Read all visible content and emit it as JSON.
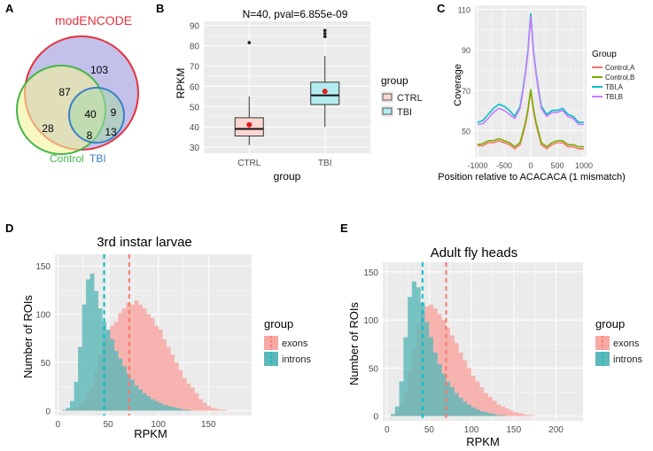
{
  "panel_labels": {
    "A": "A",
    "B": "B",
    "C": "C",
    "D": "D",
    "E": "E"
  },
  "colors": {
    "grid_bg": "#ebebeb",
    "grid_line": "#ffffff",
    "ctrl": "#f8766d",
    "tbi": "#00bfc4",
    "exons_fill": "#f8a9a4",
    "introns_fill": "#5cb8b8",
    "venn_modencode_stroke": "#e8303a",
    "venn_modencode_fill": "#b9b5e6",
    "venn_control_stroke": "#45b649",
    "venn_control_fill": "#f4f49a",
    "venn_tbi_stroke": "#3a80c9",
    "venn_tbi_fill": "#a8d8a8",
    "control_a": "#f8766d",
    "control_b": "#7cae00",
    "tbi_a": "#00bfc4",
    "tbi_b": "#c77cff"
  },
  "chart_data": [
    {
      "panel": "A",
      "type": "venn",
      "sets": [
        {
          "name": "modENCODE",
          "color": "#e8303a"
        },
        {
          "name": "Control",
          "color": "#45b649"
        },
        {
          "name": "TBI",
          "color": "#3a80c9"
        }
      ],
      "regions": [
        {
          "label": "103",
          "sets": [
            "modENCODE"
          ]
        },
        {
          "label": "87",
          "sets": [
            "modENCODE",
            "Control"
          ]
        },
        {
          "label": "40",
          "sets": [
            "modENCODE",
            "Control",
            "TBI"
          ]
        },
        {
          "label": "9",
          "sets": [
            "modENCODE",
            "TBI"
          ]
        },
        {
          "label": "28",
          "sets": [
            "Control"
          ]
        },
        {
          "label": "8",
          "sets": [
            "Control",
            "TBI"
          ]
        },
        {
          "label": "13",
          "sets": [
            "TBI"
          ]
        }
      ]
    },
    {
      "panel": "B",
      "type": "boxplot",
      "title": "N=40, pval=6.855e-09",
      "xlabel": "group",
      "ylabel": "RPKM",
      "ylim": [
        27,
        92
      ],
      "yticks": [
        30,
        40,
        50,
        60,
        70,
        80,
        90
      ],
      "categories": [
        "CTRL",
        "TBI"
      ],
      "legend_title": "group",
      "series": [
        {
          "name": "CTRL",
          "color": "#f8766d",
          "whisker_low": 31,
          "q1": 35.5,
          "median": 39,
          "q3": 44.5,
          "whisker_high": 55,
          "mean": 41,
          "outliers": [
            81.5
          ]
        },
        {
          "name": "TBI",
          "color": "#00bfc4",
          "whisker_low": 40,
          "q1": 51,
          "median": 55.5,
          "q3": 62,
          "whisker_high": 75,
          "mean": 57.5,
          "outliers": [
            84.5,
            86,
            87.5
          ]
        }
      ]
    },
    {
      "panel": "C",
      "type": "line",
      "xlabel": "Position relative to ACACACA (1 mismatch)",
      "ylabel": "Coverage",
      "xlim": [
        -1050,
        1050
      ],
      "ylim": [
        37,
        112
      ],
      "xticks": [
        -1000,
        -500,
        0,
        500,
        1000
      ],
      "xticklabels": [
        "-1000",
        "-500",
        "0",
        "500",
        "1000"
      ],
      "yticks": [
        50,
        70,
        90,
        110
      ],
      "legend_title": "Group",
      "series": [
        {
          "name": "Control,A",
          "color": "#f8766d",
          "x": [
            -1000,
            -900,
            -800,
            -700,
            -600,
            -500,
            -400,
            -300,
            -200,
            -150,
            -100,
            -50,
            0,
            50,
            100,
            150,
            200,
            300,
            400,
            500,
            600,
            700,
            800,
            900,
            1000
          ],
          "values": [
            42.5,
            42.5,
            44,
            44,
            45,
            44,
            43,
            41,
            43,
            48,
            53,
            60,
            70,
            60,
            53,
            48,
            43,
            41,
            43,
            44,
            44,
            42,
            42,
            41,
            41
          ]
        },
        {
          "name": "Control,B",
          "color": "#7cae00",
          "x": [
            -1000,
            -900,
            -800,
            -700,
            -600,
            -500,
            -400,
            -300,
            -200,
            -150,
            -100,
            -50,
            0,
            50,
            100,
            150,
            200,
            300,
            400,
            500,
            600,
            700,
            800,
            900,
            1000
          ],
          "values": [
            43,
            43.5,
            45,
            45,
            46,
            45,
            44,
            42,
            44,
            49,
            54,
            61,
            70.5,
            61,
            54,
            49,
            44,
            42,
            44,
            45,
            45,
            43,
            43,
            42,
            42
          ]
        },
        {
          "name": "TBI,A",
          "color": "#00bfc4",
          "x": [
            -1000,
            -900,
            -800,
            -700,
            -600,
            -500,
            -400,
            -300,
            -200,
            -150,
            -100,
            -50,
            0,
            50,
            100,
            150,
            200,
            300,
            400,
            500,
            600,
            700,
            800,
            900,
            1000
          ],
          "values": [
            54,
            55,
            58,
            61,
            63,
            62,
            60,
            57,
            62,
            70,
            79,
            90,
            108,
            90,
            79,
            70,
            62,
            58,
            60,
            60,
            61,
            58,
            57,
            54,
            54
          ]
        },
        {
          "name": "TBI,B",
          "color": "#c77cff",
          "x": [
            -1000,
            -900,
            -800,
            -700,
            -600,
            -500,
            -400,
            -300,
            -200,
            -150,
            -100,
            -50,
            0,
            50,
            100,
            150,
            200,
            300,
            400,
            500,
            600,
            700,
            800,
            900,
            1000
          ],
          "values": [
            53,
            53.5,
            56,
            59,
            61,
            60,
            58,
            56,
            61,
            69,
            78,
            89,
            106.5,
            89,
            78,
            69,
            61,
            57,
            59,
            59,
            60,
            57,
            56,
            53,
            53
          ]
        }
      ]
    },
    {
      "panel": "D",
      "type": "histogram",
      "title": "3rd instar larvae",
      "xlabel": "RPKM",
      "ylabel": "Number of ROIs",
      "xlim": [
        -3,
        193
      ],
      "ylim": [
        -5,
        162
      ],
      "xticks": [
        0,
        50,
        100,
        150
      ],
      "yticks": [
        0,
        50,
        100,
        150
      ],
      "legend_title": "group",
      "series": [
        {
          "name": "exons",
          "color": "#f8a9a4",
          "mean_line": 71,
          "bins_x": [
            2,
            6,
            10,
            14,
            18,
            22,
            26,
            30,
            34,
            38,
            42,
            46,
            50,
            54,
            58,
            62,
            66,
            70,
            74,
            78,
            82,
            86,
            90,
            94,
            98,
            102,
            106,
            110,
            114,
            118,
            122,
            126,
            130,
            134,
            138,
            142,
            146,
            150,
            154,
            158,
            162,
            166,
            170,
            174,
            178,
            182,
            186,
            190
          ],
          "values": [
            0,
            0,
            1,
            2,
            4,
            7,
            11,
            17,
            25,
            40,
            58,
            74,
            82,
            88,
            92,
            101,
            106,
            112,
            110,
            114,
            110,
            106,
            100,
            96,
            88,
            84,
            74,
            66,
            58,
            50,
            42,
            34,
            28,
            24,
            18,
            12,
            8,
            5,
            3,
            2,
            1,
            1,
            0,
            0,
            0,
            0,
            0,
            0
          ]
        },
        {
          "name": "introns",
          "color": "#5cb8b8",
          "mean_line": 46,
          "bins_x": [
            2,
            6,
            10,
            14,
            18,
            22,
            26,
            30,
            34,
            38,
            42,
            46,
            50,
            54,
            58,
            62,
            66,
            70,
            74,
            78,
            82,
            86,
            90,
            94,
            98,
            102,
            106,
            110,
            114,
            118,
            122,
            126,
            130,
            134,
            138,
            142,
            146,
            150,
            154,
            158,
            162,
            166,
            170,
            174,
            178,
            182,
            186,
            190
          ],
          "values": [
            0,
            1,
            3,
            10,
            30,
            66,
            110,
            136,
            142,
            124,
            106,
            92,
            84,
            74,
            62,
            54,
            46,
            38,
            32,
            26,
            22,
            18,
            15,
            12,
            10,
            8,
            6,
            5,
            4,
            3,
            2,
            1,
            1,
            0,
            0,
            0,
            0,
            0,
            0,
            0,
            0,
            0,
            0,
            0,
            0,
            0,
            0,
            0
          ]
        }
      ]
    },
    {
      "panel": "E",
      "type": "histogram",
      "title": "Adult fly heads",
      "xlabel": "RPKM",
      "ylabel": "Number of ROIs",
      "xlim": [
        -5,
        232
      ],
      "ylim": [
        -5,
        160
      ],
      "xticks": [
        0,
        50,
        100,
        150,
        200
      ],
      "yticks": [
        0,
        50,
        100,
        150
      ],
      "legend_title": "group",
      "series": [
        {
          "name": "exons",
          "color": "#f8a9a4",
          "mean_line": 70,
          "bins_x": [
            2,
            7,
            12,
            17,
            22,
            27,
            32,
            37,
            42,
            47,
            52,
            57,
            62,
            67,
            72,
            77,
            82,
            87,
            92,
            97,
            102,
            107,
            112,
            117,
            122,
            127,
            132,
            137,
            142,
            147,
            152,
            157,
            162,
            167,
            172,
            177,
            182,
            187,
            192,
            197,
            202,
            207,
            212,
            217,
            222,
            227
          ],
          "values": [
            0,
            1,
            4,
            12,
            26,
            48,
            70,
            96,
            108,
            114,
            116,
            112,
            106,
            100,
            92,
            84,
            76,
            66,
            58,
            50,
            42,
            36,
            30,
            24,
            20,
            16,
            12,
            10,
            8,
            6,
            4,
            3,
            2,
            1,
            1,
            0,
            0,
            0,
            0,
            0,
            0,
            0,
            0,
            0,
            0,
            0
          ]
        },
        {
          "name": "introns",
          "color": "#5cb8b8",
          "mean_line": 42,
          "bins_x": [
            2,
            7,
            12,
            17,
            22,
            27,
            32,
            37,
            42,
            47,
            52,
            57,
            62,
            67,
            72,
            77,
            82,
            87,
            92,
            97,
            102,
            107,
            112,
            117,
            122,
            127,
            132,
            137,
            142,
            147,
            152,
            157,
            162,
            167,
            172,
            177,
            182,
            187,
            192,
            197,
            202,
            207,
            212,
            217,
            222,
            227
          ],
          "values": [
            0,
            2,
            10,
            36,
            82,
            124,
            140,
            134,
            118,
            98,
            82,
            66,
            54,
            44,
            36,
            30,
            24,
            19,
            15,
            12,
            9,
            7,
            5,
            4,
            3,
            2,
            1,
            1,
            0,
            0,
            0,
            0,
            0,
            0,
            0,
            0,
            0,
            0,
            0,
            0,
            0,
            0,
            0,
            0,
            0,
            0
          ]
        }
      ]
    }
  ]
}
